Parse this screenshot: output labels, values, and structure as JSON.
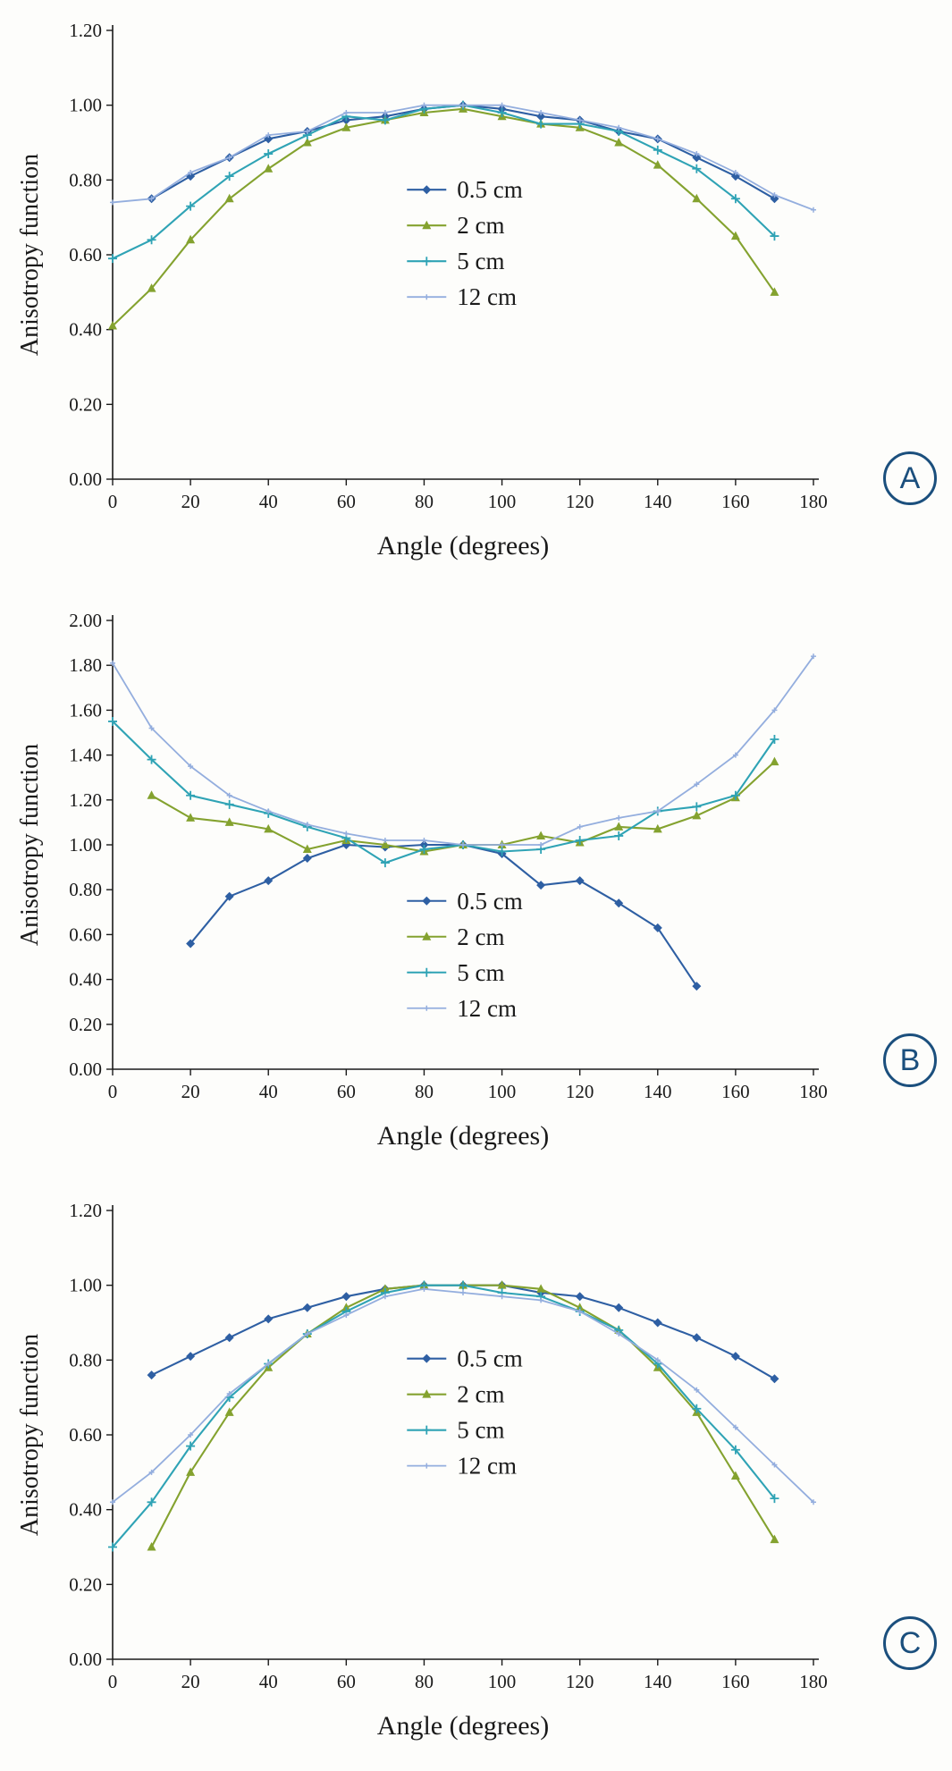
{
  "figure": {
    "background": "#fdfdfb",
    "axis_color": "#1a1a1a",
    "panel_label_color": "#1b4f7d"
  },
  "chart_data": [
    {
      "type": "line",
      "panel_label": "A",
      "title": "",
      "xlabel": "Angle (degrees)",
      "ylabel": "Anisotropy function",
      "xlim": [
        0,
        180
      ],
      "ylim": [
        0,
        1.2
      ],
      "xticks": [
        0,
        20,
        40,
        60,
        80,
        100,
        120,
        140,
        160,
        180
      ],
      "yticks": [
        0.0,
        0.2,
        0.4,
        0.6,
        0.8,
        1.0,
        1.2
      ],
      "grid": false,
      "legend": {
        "position": "inside-center",
        "fx": 0.42,
        "fy": 0.355
      },
      "series": [
        {
          "name": "0.5 cm",
          "color": "#2e5fa3",
          "marker": "diamond",
          "x": [
            10,
            20,
            30,
            40,
            50,
            60,
            70,
            80,
            90,
            100,
            110,
            120,
            130,
            140,
            150,
            160,
            170
          ],
          "y": [
            0.75,
            0.81,
            0.86,
            0.91,
            0.93,
            0.96,
            0.97,
            0.99,
            1.0,
            0.99,
            0.97,
            0.96,
            0.93,
            0.91,
            0.86,
            0.81,
            0.75
          ]
        },
        {
          "name": "2 cm",
          "color": "#84a22f",
          "marker": "triangle",
          "x": [
            0,
            10,
            20,
            30,
            40,
            50,
            60,
            70,
            80,
            90,
            100,
            110,
            120,
            130,
            140,
            150,
            160,
            170
          ],
          "y": [
            0.41,
            0.51,
            0.64,
            0.75,
            0.83,
            0.9,
            0.94,
            0.96,
            0.98,
            0.99,
            0.97,
            0.95,
            0.94,
            0.9,
            0.84,
            0.75,
            0.65,
            0.5
          ]
        },
        {
          "name": "5 cm",
          "color": "#2fa3b5",
          "marker": "plus",
          "x": [
            0,
            10,
            20,
            30,
            40,
            50,
            60,
            70,
            80,
            90,
            100,
            110,
            120,
            130,
            140,
            150,
            160,
            170
          ],
          "y": [
            0.59,
            0.64,
            0.73,
            0.81,
            0.87,
            0.92,
            0.97,
            0.96,
            0.99,
            1.0,
            0.98,
            0.95,
            0.95,
            0.93,
            0.88,
            0.83,
            0.75,
            0.65
          ]
        },
        {
          "name": "12 cm",
          "color": "#94aede",
          "marker": "plus-small",
          "x": [
            0,
            10,
            20,
            30,
            40,
            50,
            60,
            70,
            80,
            90,
            100,
            110,
            120,
            130,
            140,
            150,
            160,
            170,
            180
          ],
          "y": [
            0.74,
            0.75,
            0.82,
            0.86,
            0.92,
            0.93,
            0.98,
            0.98,
            1.0,
            1.0,
            1.0,
            0.98,
            0.96,
            0.94,
            0.91,
            0.87,
            0.82,
            0.76,
            0.72
          ]
        }
      ]
    },
    {
      "type": "line",
      "panel_label": "B",
      "title": "",
      "xlabel": "Angle (degrees)",
      "ylabel": "Anisotropy function",
      "xlim": [
        0,
        180
      ],
      "ylim": [
        0,
        2.0
      ],
      "xticks": [
        0,
        20,
        40,
        60,
        80,
        100,
        120,
        140,
        160,
        180
      ],
      "yticks": [
        0.0,
        0.2,
        0.4,
        0.6,
        0.8,
        1.0,
        1.2,
        1.4,
        1.6,
        1.8,
        2.0
      ],
      "grid": false,
      "legend": {
        "position": "inside-center",
        "fx": 0.42,
        "fy": 0.625
      },
      "series": [
        {
          "name": "0.5 cm",
          "color": "#2e5fa3",
          "marker": "diamond",
          "x": [
            20,
            30,
            40,
            50,
            60,
            70,
            80,
            90,
            100,
            110,
            120,
            130,
            140,
            150
          ],
          "y": [
            0.56,
            0.77,
            0.84,
            0.94,
            1.0,
            0.99,
            1.0,
            1.0,
            0.96,
            0.82,
            0.84,
            0.74,
            0.63,
            0.37
          ]
        },
        {
          "name": "2 cm",
          "color": "#84a22f",
          "marker": "triangle",
          "x": [
            10,
            20,
            30,
            40,
            50,
            60,
            70,
            80,
            90,
            100,
            110,
            120,
            130,
            140,
            150,
            160,
            170
          ],
          "y": [
            1.22,
            1.12,
            1.1,
            1.07,
            0.98,
            1.02,
            1.0,
            0.97,
            1.0,
            1.0,
            1.04,
            1.01,
            1.08,
            1.07,
            1.13,
            1.21,
            1.37
          ]
        },
        {
          "name": "5 cm",
          "color": "#2fa3b5",
          "marker": "plus",
          "x": [
            0,
            10,
            20,
            30,
            40,
            50,
            60,
            70,
            80,
            90,
            100,
            110,
            120,
            130,
            140,
            150,
            160,
            170
          ],
          "y": [
            1.55,
            1.38,
            1.22,
            1.18,
            1.14,
            1.08,
            1.03,
            0.92,
            0.98,
            1.0,
            0.97,
            0.98,
            1.02,
            1.04,
            1.15,
            1.17,
            1.22,
            1.47
          ]
        },
        {
          "name": "12 cm",
          "color": "#94aede",
          "marker": "plus-small",
          "x": [
            0,
            10,
            20,
            30,
            40,
            50,
            60,
            70,
            80,
            90,
            100,
            110,
            120,
            130,
            140,
            150,
            160,
            170,
            180
          ],
          "y": [
            1.81,
            1.52,
            1.35,
            1.22,
            1.15,
            1.09,
            1.05,
            1.02,
            1.02,
            1.0,
            1.0,
            1.0,
            1.08,
            1.12,
            1.15,
            1.27,
            1.4,
            1.6,
            1.84
          ]
        }
      ]
    },
    {
      "type": "line",
      "panel_label": "C",
      "title": "",
      "xlabel": "Angle (degrees)",
      "ylabel": "Anisotropy function",
      "xlim": [
        0,
        180
      ],
      "ylim": [
        0,
        1.2
      ],
      "xticks": [
        0,
        20,
        40,
        60,
        80,
        100,
        120,
        140,
        160,
        180
      ],
      "yticks": [
        0.0,
        0.2,
        0.4,
        0.6,
        0.8,
        1.0,
        1.2
      ],
      "grid": false,
      "legend": {
        "position": "inside-center",
        "fx": 0.42,
        "fy": 0.33
      },
      "series": [
        {
          "name": "0.5 cm",
          "color": "#2e5fa3",
          "marker": "diamond",
          "x": [
            10,
            20,
            30,
            40,
            50,
            60,
            70,
            80,
            90,
            100,
            110,
            120,
            130,
            140,
            150,
            160,
            170
          ],
          "y": [
            0.76,
            0.81,
            0.86,
            0.91,
            0.94,
            0.97,
            0.99,
            1.0,
            1.0,
            1.0,
            0.98,
            0.97,
            0.94,
            0.9,
            0.86,
            0.81,
            0.75
          ]
        },
        {
          "name": "2 cm",
          "color": "#84a22f",
          "marker": "triangle",
          "x": [
            10,
            20,
            30,
            40,
            50,
            60,
            70,
            80,
            90,
            100,
            110,
            120,
            130,
            140,
            150,
            160,
            170
          ],
          "y": [
            0.3,
            0.5,
            0.66,
            0.78,
            0.87,
            0.94,
            0.99,
            1.0,
            1.0,
            1.0,
            0.99,
            0.94,
            0.88,
            0.78,
            0.66,
            0.49,
            0.32
          ]
        },
        {
          "name": "5 cm",
          "color": "#2fa3b5",
          "marker": "plus",
          "x": [
            0,
            10,
            20,
            30,
            40,
            50,
            60,
            70,
            80,
            90,
            100,
            110,
            120,
            130,
            140,
            150,
            160,
            170
          ],
          "y": [
            0.3,
            0.42,
            0.57,
            0.7,
            0.79,
            0.87,
            0.93,
            0.98,
            1.0,
            1.0,
            0.98,
            0.97,
            0.93,
            0.88,
            0.79,
            0.67,
            0.56,
            0.43
          ]
        },
        {
          "name": "12 cm",
          "color": "#94aede",
          "marker": "plus-small",
          "x": [
            0,
            10,
            20,
            30,
            40,
            50,
            60,
            70,
            80,
            90,
            100,
            110,
            120,
            130,
            140,
            150,
            160,
            170,
            180
          ],
          "y": [
            0.42,
            0.5,
            0.6,
            0.71,
            0.79,
            0.87,
            0.92,
            0.97,
            0.99,
            0.98,
            0.97,
            0.96,
            0.93,
            0.87,
            0.8,
            0.72,
            0.62,
            0.52,
            0.42
          ]
        }
      ]
    }
  ]
}
